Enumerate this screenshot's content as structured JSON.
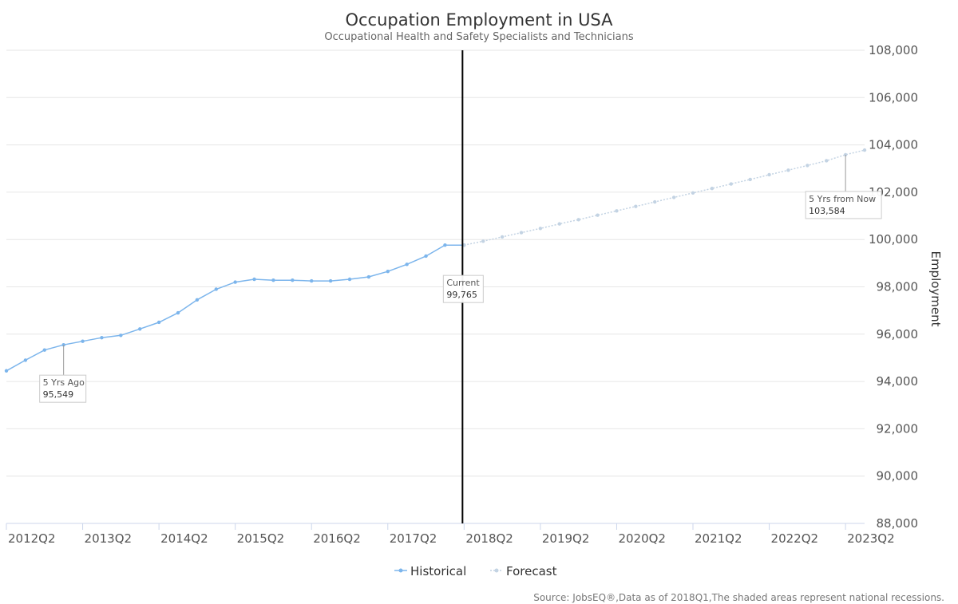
{
  "colors": {
    "historical": "#7cb5ec",
    "forecast": "#c3d3e3",
    "grid": "#e6e6e6",
    "current_line": "#000000"
  },
  "chart_data": {
    "type": "line",
    "title": "Occupation Employment in USA",
    "subtitle": "Occupational Health and Safety Specialists and Technicians",
    "ylabel": "Employment",
    "xlabel": "",
    "ylim": [
      88000,
      108000
    ],
    "y_ticks": [
      "88,000",
      "90,000",
      "92,000",
      "94,000",
      "96,000",
      "98,000",
      "100,000",
      "102,000",
      "104,000",
      "106,000",
      "108,000"
    ],
    "x_ticks": [
      "2012Q2",
      "2013Q2",
      "2014Q2",
      "2015Q2",
      "2016Q2",
      "2017Q2",
      "2018Q2",
      "2019Q2",
      "2020Q2",
      "2021Q2",
      "2022Q2",
      "2023Q2"
    ],
    "grid": true,
    "y_axis_position": "right",
    "legend_position": "bottom-center",
    "series": [
      {
        "name": "Historical",
        "x": [
          "2012Q1",
          "2012Q2",
          "2012Q3",
          "2012Q4",
          "2013Q1",
          "2013Q2",
          "2013Q3",
          "2013Q4",
          "2014Q1",
          "2014Q2",
          "2014Q3",
          "2014Q4",
          "2015Q1",
          "2015Q2",
          "2015Q3",
          "2015Q4",
          "2016Q1",
          "2016Q2",
          "2016Q3",
          "2016Q4",
          "2017Q1",
          "2017Q2",
          "2017Q3",
          "2017Q4",
          "2018Q1"
        ],
        "values": [
          94450,
          94900,
          95330,
          95549,
          95700,
          95850,
          95950,
          96220,
          96500,
          96900,
          97450,
          97900,
          98200,
          98320,
          98280,
          98280,
          98250,
          98250,
          98320,
          98420,
          98650,
          98950,
          99300,
          99765,
          99765
        ]
      },
      {
        "name": "Forecast",
        "x": [
          "2018Q1",
          "2018Q2",
          "2018Q3",
          "2018Q4",
          "2019Q1",
          "2019Q2",
          "2019Q3",
          "2019Q4",
          "2020Q1",
          "2020Q2",
          "2020Q3",
          "2020Q4",
          "2021Q1",
          "2021Q2",
          "2021Q3",
          "2021Q4",
          "2022Q1",
          "2022Q2",
          "2022Q3",
          "2022Q4",
          "2023Q1",
          "2023Q2"
        ],
        "values": [
          99765,
          99930,
          100110,
          100290,
          100470,
          100660,
          100840,
          101030,
          101210,
          101400,
          101590,
          101780,
          101970,
          102160,
          102350,
          102540,
          102740,
          102930,
          103130,
          103330,
          103584,
          103780
        ]
      }
    ],
    "current_marker": "2018Q1",
    "annotations": [
      {
        "label": "5 Yrs Ago",
        "value": "95,549",
        "x": "2012Q4"
      },
      {
        "label": "Current",
        "value": "99,765",
        "x": "2018Q1"
      },
      {
        "label": "5 Yrs from Now",
        "value": "103,584",
        "x": "2023Q1"
      }
    ],
    "credits": "Source: JobsEQ®,Data as of 2018Q1,The shaded areas represent national recessions."
  }
}
